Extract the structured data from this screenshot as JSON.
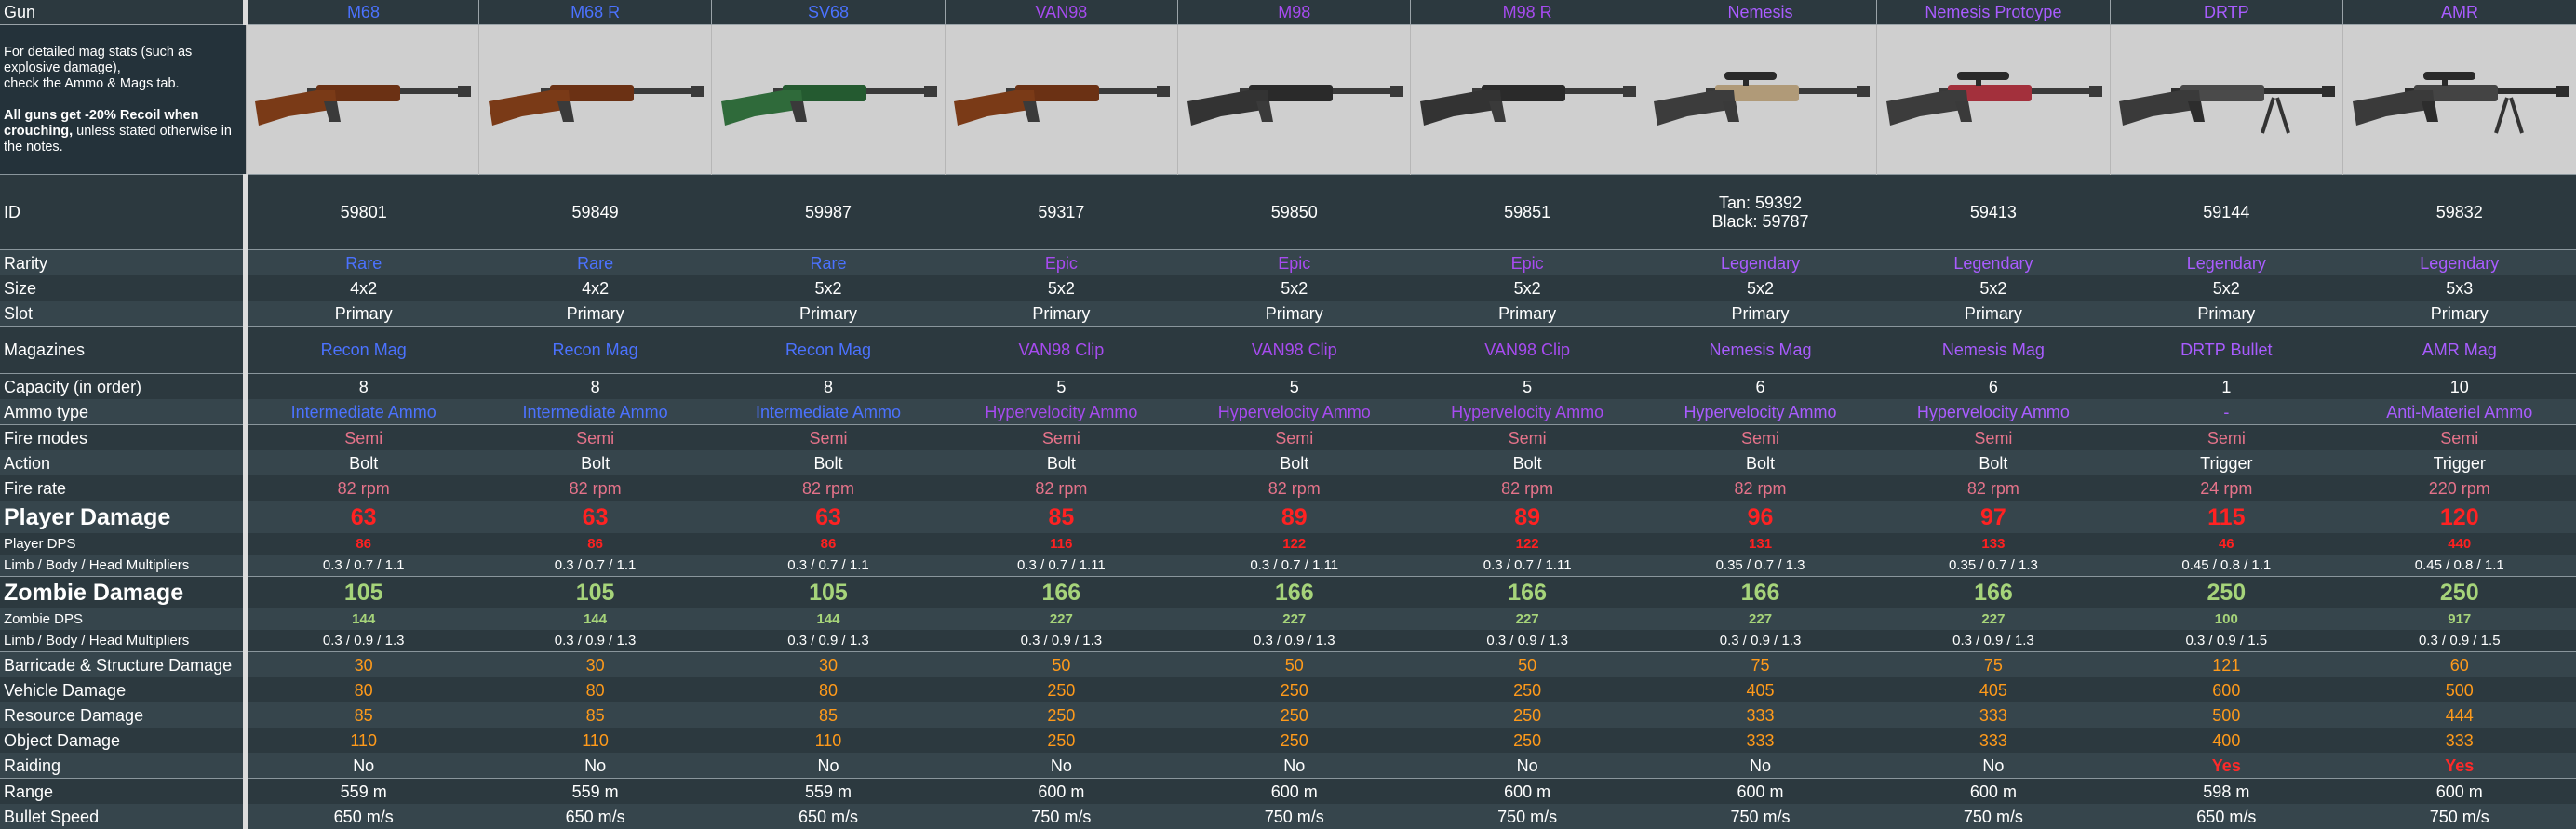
{
  "header_label": "Gun",
  "note": {
    "line1": "For detailed mag stats (such as explosive damage),",
    "line2": "check the Ammo & Mags tab.",
    "bold": "All guns get -20% Recoil when crouching,",
    "rest": " unless stated otherwise in the notes."
  },
  "labels": {
    "id": "ID",
    "rarity": "Rarity",
    "size": "Size",
    "slot": "Slot",
    "magazines": "Magazines",
    "capacity": "Capacity (in order)",
    "ammo": "Ammo type",
    "fire_modes": "Fire modes",
    "action": "Action",
    "fire_rate": "Fire rate",
    "player_damage": "Player Damage",
    "player_dps": "Player DPS",
    "player_mult": "Limb / Body / Head Multipliers",
    "zombie_damage": "Zombie Damage",
    "zombie_dps": "Zombie DPS",
    "zombie_mult": "Limb / Body / Head Multipliers",
    "barricade": "Barricade & Structure Damage",
    "vehicle": "Vehicle Damage",
    "resource": "Resource Damage",
    "object": "Object Damage",
    "raiding": "Raiding",
    "range": "Range",
    "bullet_speed": "Bullet Speed"
  },
  "colors": {
    "rare": "#4b72ff",
    "epic": "#a74bf0",
    "legendary": "#a95cff",
    "accent_orange": "#ff9a1a",
    "damage_red": "#ff2020",
    "zombie_green": "#a6d47a"
  },
  "guns": [
    {
      "name": "M68",
      "rarity": "Rare",
      "tier": "blue",
      "image": "wood-rifle",
      "id": "59801",
      "id2": "",
      "size": "4x2",
      "slot": "Primary",
      "mag": "Recon Mag",
      "capacity": "8",
      "ammo": "Intermediate Ammo",
      "fire_modes": "Semi",
      "action": "Bolt",
      "fire_rate": "82 rpm",
      "player_damage": "63",
      "player_dps": "86",
      "player_mult": "0.3 / 0.7 / 1.1",
      "zombie_damage": "105",
      "zombie_dps": "144",
      "zombie_mult": "0.3 / 0.9 / 1.3",
      "barricade": "30",
      "vehicle": "80",
      "resource": "85",
      "object": "110",
      "raiding": "No",
      "range": "559 m",
      "bullet_speed": "650 m/s"
    },
    {
      "name": "M68 R",
      "rarity": "Rare",
      "tier": "blue",
      "image": "wood-rifle",
      "id": "59849",
      "id2": "",
      "size": "4x2",
      "slot": "Primary",
      "mag": "Recon Mag",
      "capacity": "8",
      "ammo": "Intermediate Ammo",
      "fire_modes": "Semi",
      "action": "Bolt",
      "fire_rate": "82 rpm",
      "player_damage": "63",
      "player_dps": "86",
      "player_mult": "0.3 / 0.7 / 1.1",
      "zombie_damage": "105",
      "zombie_dps": "144",
      "zombie_mult": "0.3 / 0.9 / 1.3",
      "barricade": "30",
      "vehicle": "80",
      "resource": "85",
      "object": "110",
      "raiding": "No",
      "range": "559 m",
      "bullet_speed": "650 m/s"
    },
    {
      "name": "SV68",
      "rarity": "Rare",
      "tier": "blue",
      "image": "green-rifle",
      "id": "59987",
      "id2": "",
      "size": "5x2",
      "slot": "Primary",
      "mag": "Recon Mag",
      "capacity": "8",
      "ammo": "Intermediate Ammo",
      "fire_modes": "Semi",
      "action": "Bolt",
      "fire_rate": "82 rpm",
      "player_damage": "63",
      "player_dps": "86",
      "player_mult": "0.3 / 0.7 / 1.1",
      "zombie_damage": "105",
      "zombie_dps": "144",
      "zombie_mult": "0.3 / 0.9 / 1.3",
      "barricade": "30",
      "vehicle": "80",
      "resource": "85",
      "object": "110",
      "raiding": "No",
      "range": "559 m",
      "bullet_speed": "650 m/s"
    },
    {
      "name": "VAN98",
      "rarity": "Epic",
      "tier": "purple",
      "image": "wood-rifle",
      "id": "59317",
      "id2": "",
      "size": "5x2",
      "slot": "Primary",
      "mag": "VAN98 Clip",
      "capacity": "5",
      "ammo": "Hypervelocity Ammo",
      "fire_modes": "Semi",
      "action": "Bolt",
      "fire_rate": "82 rpm",
      "player_damage": "85",
      "player_dps": "116",
      "player_mult": "0.3 / 0.7 / 1.11",
      "zombie_damage": "166",
      "zombie_dps": "227",
      "zombie_mult": "0.3 / 0.9 / 1.3",
      "barricade": "50",
      "vehicle": "250",
      "resource": "250",
      "object": "250",
      "raiding": "No",
      "range": "600 m",
      "bullet_speed": "750 m/s"
    },
    {
      "name": "M98",
      "rarity": "Epic",
      "tier": "purple",
      "image": "black-rifle",
      "id": "59850",
      "id2": "",
      "size": "5x2",
      "slot": "Primary",
      "mag": "VAN98 Clip",
      "capacity": "5",
      "ammo": "Hypervelocity Ammo",
      "fire_modes": "Semi",
      "action": "Bolt",
      "fire_rate": "82 rpm",
      "player_damage": "89",
      "player_dps": "122",
      "player_mult": "0.3 / 0.7 / 1.11",
      "zombie_damage": "166",
      "zombie_dps": "227",
      "zombie_mult": "0.3 / 0.9 / 1.3",
      "barricade": "50",
      "vehicle": "250",
      "resource": "250",
      "object": "250",
      "raiding": "No",
      "range": "600 m",
      "bullet_speed": "750 m/s"
    },
    {
      "name": "M98 R",
      "rarity": "Epic",
      "tier": "purple",
      "image": "black-rifle",
      "id": "59851",
      "id2": "",
      "size": "5x2",
      "slot": "Primary",
      "mag": "VAN98 Clip",
      "capacity": "5",
      "ammo": "Hypervelocity Ammo",
      "fire_modes": "Semi",
      "action": "Bolt",
      "fire_rate": "82 rpm",
      "player_damage": "89",
      "player_dps": "122",
      "player_mult": "0.3 / 0.7 / 1.11",
      "zombie_damage": "166",
      "zombie_dps": "227",
      "zombie_mult": "0.3 / 0.9 / 1.3",
      "barricade": "50",
      "vehicle": "250",
      "resource": "250",
      "object": "250",
      "raiding": "No",
      "range": "600 m",
      "bullet_speed": "750 m/s"
    },
    {
      "name": "Nemesis",
      "rarity": "Legendary",
      "tier": "lpurple",
      "image": "tan-sniper",
      "id": "Tan: 59392",
      "id2": "Black: 59787",
      "size": "5x2",
      "slot": "Primary",
      "mag": "Nemesis Mag",
      "capacity": "6",
      "ammo": "Hypervelocity Ammo",
      "fire_modes": "Semi",
      "action": "Bolt",
      "fire_rate": "82 rpm",
      "player_damage": "96",
      "player_dps": "131",
      "player_mult": "0.35 / 0.7 / 1.3",
      "zombie_damage": "166",
      "zombie_dps": "227",
      "zombie_mult": "0.3 / 0.9 / 1.3",
      "barricade": "75",
      "vehicle": "405",
      "resource": "333",
      "object": "333",
      "raiding": "No",
      "range": "600 m",
      "bullet_speed": "750 m/s"
    },
    {
      "name": "Nemesis Protoype",
      "rarity": "Legendary",
      "tier": "lpurple",
      "image": "red-sniper",
      "id": "59413",
      "id2": "",
      "size": "5x2",
      "slot": "Primary",
      "mag": "Nemesis Mag",
      "capacity": "6",
      "ammo": "Hypervelocity Ammo",
      "fire_modes": "Semi",
      "action": "Bolt",
      "fire_rate": "82 rpm",
      "player_damage": "97",
      "player_dps": "133",
      "player_mult": "0.35 / 0.7 / 1.3",
      "zombie_damage": "166",
      "zombie_dps": "227",
      "zombie_mult": "0.3 / 0.9 / 1.3",
      "barricade": "75",
      "vehicle": "405",
      "resource": "333",
      "object": "333",
      "raiding": "No",
      "range": "600 m",
      "bullet_speed": "750 m/s"
    },
    {
      "name": "DRTP",
      "rarity": "Legendary",
      "tier": "lpurple",
      "image": "bipod-rifle",
      "id": "59144",
      "id2": "",
      "size": "5x2",
      "slot": "Primary",
      "mag": "DRTP Bullet",
      "capacity": "1",
      "ammo": "-",
      "fire_modes": "Semi",
      "action": "Trigger",
      "fire_rate": "24 rpm",
      "player_damage": "115",
      "player_dps": "46",
      "player_mult": "0.45 / 0.8 / 1.1",
      "zombie_damage": "250",
      "zombie_dps": "100",
      "zombie_mult": "0.3 / 0.9 / 1.5",
      "barricade": "121",
      "vehicle": "600",
      "resource": "500",
      "object": "400",
      "raiding": "Yes",
      "range": "598 m",
      "bullet_speed": "650 m/s"
    },
    {
      "name": "AMR",
      "rarity": "Legendary",
      "tier": "lpurple",
      "image": "amr-rifle",
      "id": "59832",
      "id2": "",
      "size": "5x3",
      "slot": "Primary",
      "mag": "AMR Mag",
      "capacity": "10",
      "ammo": "Anti-Materiel Ammo",
      "fire_modes": "Semi",
      "action": "Trigger",
      "fire_rate": "220 rpm",
      "player_damage": "120",
      "player_dps": "440",
      "player_mult": "0.45 / 0.8 / 1.1",
      "zombie_damage": "250",
      "zombie_dps": "917",
      "zombie_mult": "0.3 / 0.9 / 1.5",
      "barricade": "60",
      "vehicle": "500",
      "resource": "444",
      "object": "333",
      "raiding": "Yes",
      "range": "600 m",
      "bullet_speed": "750 m/s"
    }
  ]
}
